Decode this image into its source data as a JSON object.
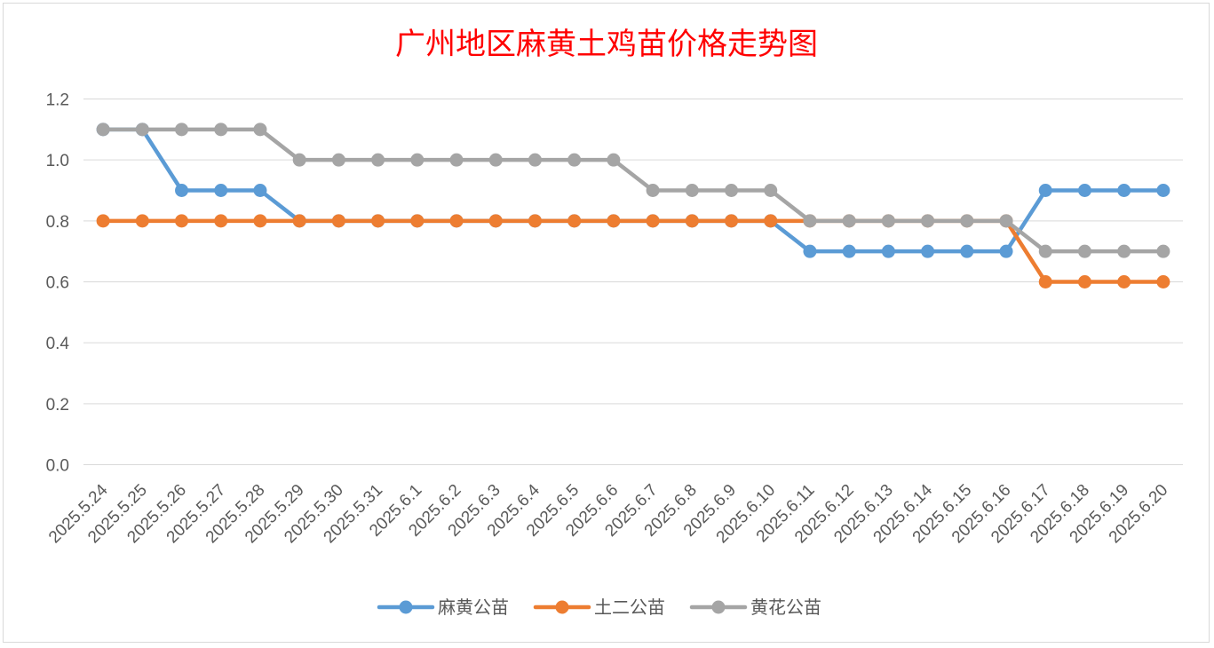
{
  "colors": {
    "background": "#ffffff",
    "title": "#ff0000",
    "grid": "#d9d9d9",
    "axis_text": "#595959",
    "outer_border": "#d9d9d9"
  },
  "chart_data": {
    "type": "line",
    "title": "广州地区麻黄土鸡苗价格走势图",
    "xlabel": "",
    "ylabel": "",
    "ylim": [
      0,
      1.2
    ],
    "y_ticks": [
      "0.0",
      "0.2",
      "0.4",
      "0.6",
      "0.8",
      "1.0",
      "1.2"
    ],
    "grid": true,
    "legend_position": "bottom",
    "categories": [
      "2025.5.24",
      "2025.5.25",
      "2025.5.26",
      "2025.5.27",
      "2025.5.28",
      "2025.5.29",
      "2025.5.30",
      "2025.5.31",
      "2025.6.1",
      "2025.6.2",
      "2025.6.3",
      "2025.6.4",
      "2025.6.5",
      "2025.6.6",
      "2025.6.7",
      "2025.6.8",
      "2025.6.9",
      "2025.6.10",
      "2025.6.11",
      "2025.6.12",
      "2025.6.13",
      "2025.6.14",
      "2025.6.15",
      "2025.6.16",
      "2025.6.17",
      "2025.6.18",
      "2025.6.19",
      "2025.6.20"
    ],
    "series": [
      {
        "name": "麻黄公苗",
        "color": "#5b9bd5",
        "values": [
          1.1,
          1.1,
          0.9,
          0.9,
          0.9,
          0.8,
          0.8,
          0.8,
          0.8,
          0.8,
          0.8,
          0.8,
          0.8,
          0.8,
          0.8,
          0.8,
          0.8,
          0.8,
          0.7,
          0.7,
          0.7,
          0.7,
          0.7,
          0.7,
          0.9,
          0.9,
          0.9,
          0.9
        ]
      },
      {
        "name": "土二公苗",
        "color": "#ed7d31",
        "values": [
          0.8,
          0.8,
          0.8,
          0.8,
          0.8,
          0.8,
          0.8,
          0.8,
          0.8,
          0.8,
          0.8,
          0.8,
          0.8,
          0.8,
          0.8,
          0.8,
          0.8,
          0.8,
          0.8,
          0.8,
          0.8,
          0.8,
          0.8,
          0.8,
          0.6,
          0.6,
          0.6,
          0.6
        ]
      },
      {
        "name": "黄花公苗",
        "color": "#a5a5a5",
        "values": [
          1.1,
          1.1,
          1.1,
          1.1,
          1.1,
          1.0,
          1.0,
          1.0,
          1.0,
          1.0,
          1.0,
          1.0,
          1.0,
          1.0,
          0.9,
          0.9,
          0.9,
          0.9,
          0.8,
          0.8,
          0.8,
          0.8,
          0.8,
          0.8,
          0.7,
          0.7,
          0.7,
          0.7
        ]
      }
    ]
  }
}
